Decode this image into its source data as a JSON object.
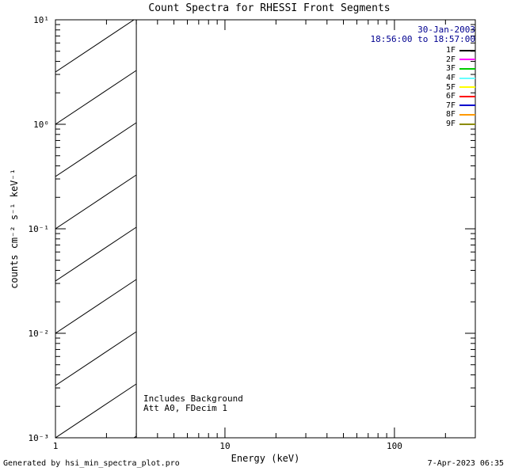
{
  "footer": {
    "left": "Generated by hsi_min_spectra_plot.pro",
    "right": "7-Apr-2023 06:35"
  },
  "chart_data": {
    "type": "line",
    "title": "Count Spectra for RHESSI Front Segments",
    "xlabel": "Energy (keV)",
    "ylabel": "counts cm⁻² s⁻¹ keV⁻¹",
    "xscale": "log",
    "yscale": "log",
    "xlim": [
      1,
      300
    ],
    "ylim": [
      0.001,
      10
    ],
    "x_major_ticks": [
      1,
      10,
      100
    ],
    "x_tick_labels": [
      "1",
      "10",
      "100"
    ],
    "y_major_ticks": [
      0.001,
      0.01,
      0.1,
      1,
      10
    ],
    "y_tick_labels": [
      "10⁻³",
      "10⁻²",
      "10⁻¹",
      "10⁰",
      "10¹"
    ],
    "grid": false,
    "series": [],
    "hatch_region": {
      "x_start": 1,
      "x_end": 3,
      "spans_full_y_range": true,
      "style": "diagonal-hatch",
      "color": "#000000"
    },
    "annotations": [
      "Includes Background",
      "Att A0, FDecim 1"
    ],
    "legend": {
      "position": "upper right",
      "header_lines": [
        "30-Jan-2003",
        "18:56:00 to 18:57:00"
      ],
      "header_color": "#000090",
      "entries": [
        {
          "label": "1F",
          "color": "#000000"
        },
        {
          "label": "2F",
          "color": "#ff00ff"
        },
        {
          "label": "3F",
          "color": "#00cc00"
        },
        {
          "label": "4F",
          "color": "#66ffff"
        },
        {
          "label": "5F",
          "color": "#ffff00"
        },
        {
          "label": "6F",
          "color": "#ff0000"
        },
        {
          "label": "7F",
          "color": "#0000cc"
        },
        {
          "label": "8F",
          "color": "#ff9900"
        },
        {
          "label": "9F",
          "color": "#8b8b00"
        }
      ]
    },
    "axis_color": "#000000",
    "background_color": "#ffffff"
  }
}
